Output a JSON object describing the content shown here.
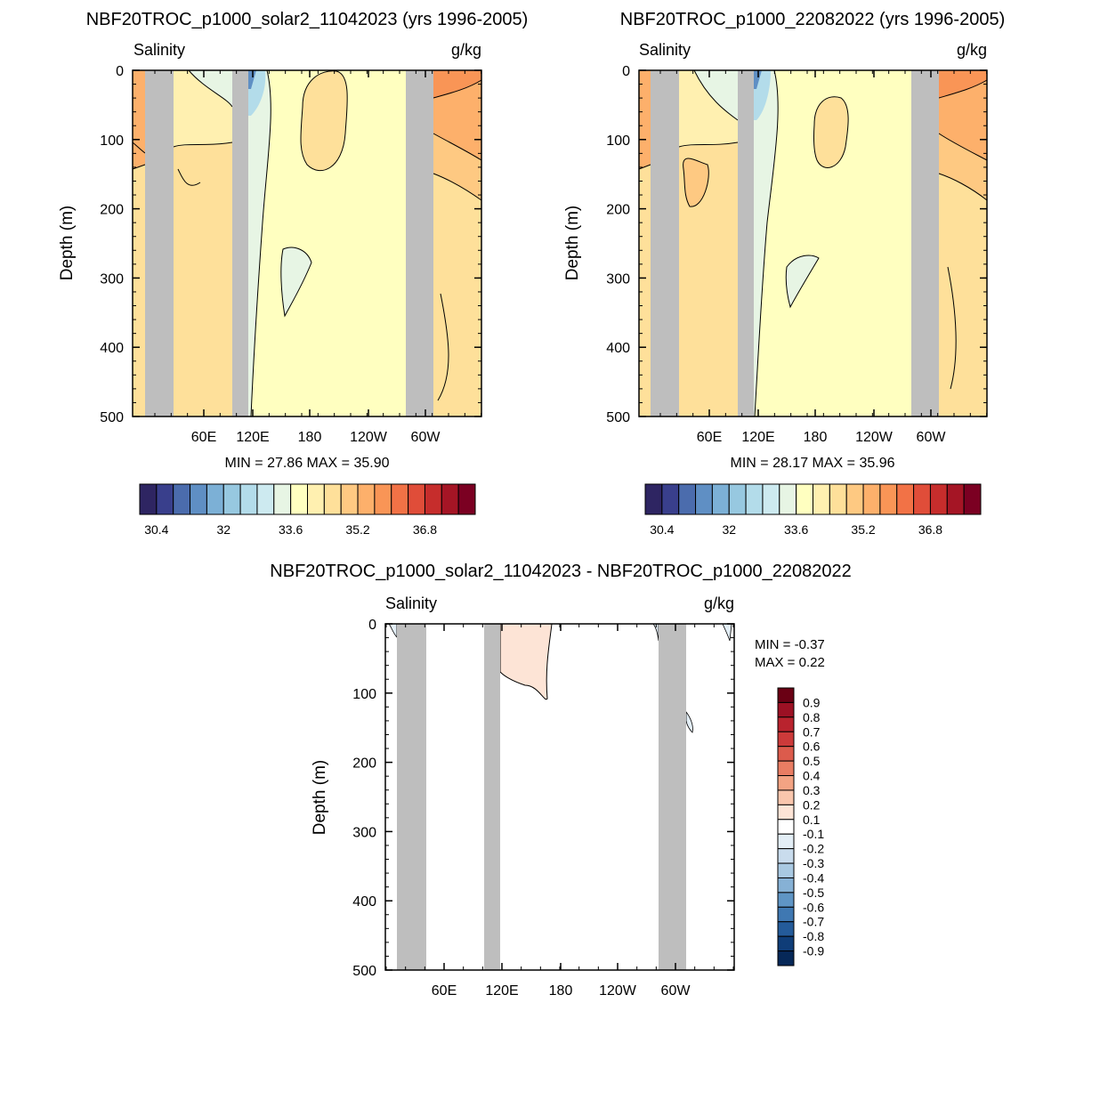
{
  "panels": [
    {
      "title": "NBF20TROC_p1000_solar2_11042023 (yrs 1996-2005)",
      "left_label": "Salinity",
      "right_label": "g/kg",
      "ylabel": "Depth (m)",
      "min_max": "MIN =  27.86  MAX =  35.90"
    },
    {
      "title": "NBF20TROC_p1000_22082022 (yrs 1996-2005)",
      "left_label": "Salinity",
      "right_label": "g/kg",
      "ylabel": "Depth (m)",
      "min_max": "MIN =  28.17  MAX =  35.96"
    },
    {
      "title": "NBF20TROC_p1000_solar2_11042023 - NBF20TROC_p1000_22082022",
      "left_label": "Salinity",
      "right_label": "g/kg",
      "ylabel": "Depth (m)",
      "min_label": "MIN =  -0.37",
      "max_label": "MAX =   0.22"
    }
  ],
  "colorbar_field": {
    "labels": [
      "30.4",
      "32",
      "33.6",
      "35.2",
      "36.8"
    ],
    "colors": [
      "#2e2562",
      "#393f8c",
      "#4b6cad",
      "#5f8fc4",
      "#7cb0d6",
      "#97c8e0",
      "#b3dcea",
      "#cdeaf0",
      "#e7f5e4",
      "#ffffc0",
      "#fff0b0",
      "#fee09a",
      "#fec982",
      "#fdb06b",
      "#f99556",
      "#f27246",
      "#e04d39",
      "#c62d2c",
      "#a51525",
      "#7b0022"
    ]
  },
  "colorbar_diff": {
    "labels": [
      "0.9",
      "0.8",
      "0.7",
      "0.6",
      "0.5",
      "0.4",
      "0.3",
      "0.2",
      "0.1",
      "-0.1",
      "-0.2",
      "-0.3",
      "-0.4",
      "-0.5",
      "-0.6",
      "-0.7",
      "-0.8",
      "-0.9"
    ],
    "colors": [
      "#6a0014",
      "#9c1124",
      "#b9232e",
      "#cc3a3a",
      "#dc5b4c",
      "#e97d63",
      "#f3a383",
      "#f9c6ad",
      "#fde4d6",
      "#ffffff",
      "#e3eef6",
      "#c9dced",
      "#a9c9e2",
      "#86b1d5",
      "#5f95c5",
      "#3f78b2",
      "#245b9a",
      "#0f3d78",
      "#062858"
    ]
  },
  "chart_data": [
    {
      "type": "heatmap",
      "title": "NBF20TROC_p1000_solar2_11042023 (yrs 1996-2005)",
      "variable": "Salinity",
      "units": "g/kg",
      "ylabel": "Depth (m)",
      "x_ticks": [
        "60E",
        "120E",
        "180",
        "120W",
        "60W"
      ],
      "y_ticks": [
        0,
        100,
        200,
        300,
        400,
        500
      ],
      "ylim": [
        500,
        0
      ],
      "min": 27.86,
      "max": 35.9
    },
    {
      "type": "heatmap",
      "title": "NBF20TROC_p1000_22082022 (yrs 1996-2005)",
      "variable": "Salinity",
      "units": "g/kg",
      "ylabel": "Depth (m)",
      "x_ticks": [
        "60E",
        "120E",
        "180",
        "120W",
        "60W"
      ],
      "y_ticks": [
        0,
        100,
        200,
        300,
        400,
        500
      ],
      "ylim": [
        500,
        0
      ],
      "min": 28.17,
      "max": 35.96
    },
    {
      "type": "heatmap",
      "title": "NBF20TROC_p1000_solar2_11042023 - NBF20TROC_p1000_22082022",
      "variable": "Salinity",
      "units": "g/kg",
      "ylabel": "Depth (m)",
      "x_ticks": [
        "60E",
        "120E",
        "180",
        "120W",
        "60W"
      ],
      "y_ticks": [
        0,
        100,
        200,
        300,
        400,
        500
      ],
      "ylim": [
        500,
        0
      ],
      "min": -0.37,
      "max": 0.22
    }
  ]
}
